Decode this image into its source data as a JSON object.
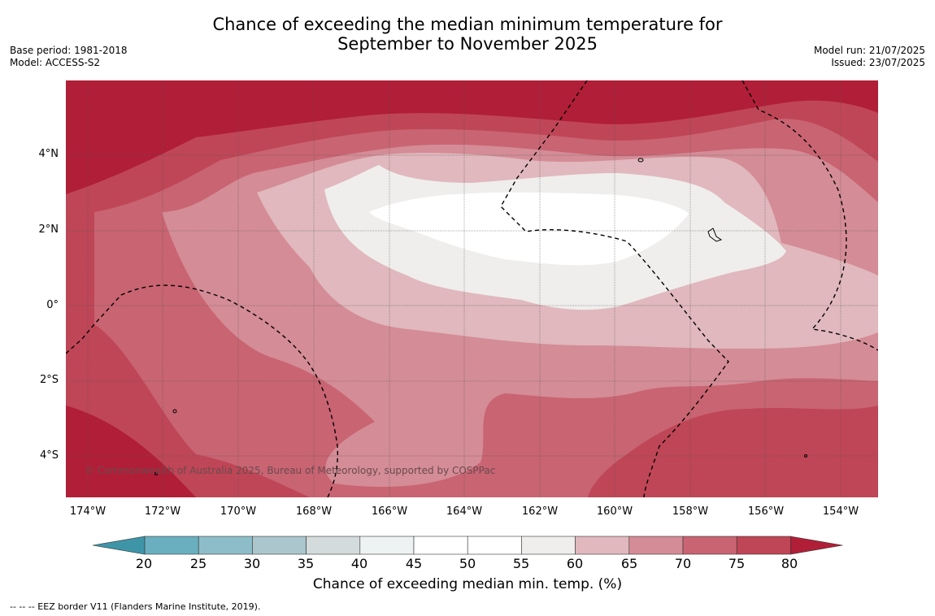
{
  "title_line1": "Chance of exceeding the median minimum temperature for",
  "title_line2": "September to November 2025",
  "meta_left": {
    "base_period": "Base period: 1981-2018",
    "model": "Model: ACCESS-S2"
  },
  "meta_right": {
    "model_run": "Model run: 21/07/2025",
    "issued": "Issued: 23/07/2025"
  },
  "lat_labels": [
    "4°N",
    "2°N",
    "0°",
    "2°S",
    "4°S"
  ],
  "lon_labels": [
    "174°W",
    "172°W",
    "170°W",
    "168°W",
    "166°W",
    "164°W",
    "162°W",
    "160°W",
    "158°W",
    "156°W",
    "154°W"
  ],
  "copyright": "© Commonwealth of Australia 2025, Bureau of Meteorology, supported by COSPPac",
  "colorbar": {
    "label": "Chance of exceeding median min. temp. (%)",
    "ticks": [
      "20",
      "25",
      "30",
      "35",
      "40",
      "45",
      "50",
      "55",
      "60",
      "65",
      "70",
      "75",
      "80"
    ],
    "colors": [
      "#3f95a8",
      "#6aafbf",
      "#8dbdc8",
      "#abc6cc",
      "#d4dbdc",
      "#eef2f3",
      "#ffffff",
      "#ffffff",
      "#efeeec",
      "#e0b8bd",
      "#d48c96",
      "#c96472",
      "#bf4656",
      "#b11e37"
    ]
  },
  "footnote": "--  --  -- EEZ border V11 (Flanders Marine Institute, 2019)."
}
